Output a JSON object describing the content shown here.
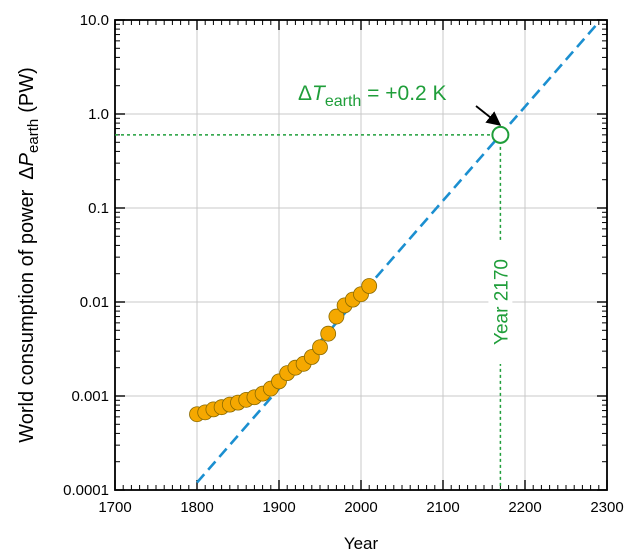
{
  "chart_data": {
    "type": "scatter",
    "xlabel": "Year",
    "ylabel_main": "World consumption of power",
    "ylabel_symbol_prefix": "Δ",
    "ylabel_symbol": "P",
    "ylabel_symbol_sub": "earth",
    "ylabel_unit": "(PW)",
    "xlim": [
      1700,
      2300
    ],
    "ylim": [
      0.0001,
      10
    ],
    "yscale": "log",
    "grid": true,
    "x_ticks": [
      "1700",
      "1800",
      "1900",
      "2000",
      "2100",
      "2200",
      "2300"
    ],
    "y_ticks": [
      "0.0001",
      "0.001",
      "0.01",
      "0.1",
      "1.0",
      "10.0"
    ],
    "series": [
      {
        "marker": "circle",
        "color": "#f5a800",
        "points": [
          {
            "x": 1800,
            "y": 0.00064
          },
          {
            "x": 1810,
            "y": 0.00067
          },
          {
            "x": 1820,
            "y": 0.00072
          },
          {
            "x": 1830,
            "y": 0.00076
          },
          {
            "x": 1840,
            "y": 0.00081
          },
          {
            "x": 1850,
            "y": 0.00085
          },
          {
            "x": 1860,
            "y": 0.00091
          },
          {
            "x": 1870,
            "y": 0.00097
          },
          {
            "x": 1880,
            "y": 0.00106
          },
          {
            "x": 1890,
            "y": 0.0012
          },
          {
            "x": 1900,
            "y": 0.00143
          },
          {
            "x": 1910,
            "y": 0.00175
          },
          {
            "x": 1920,
            "y": 0.002
          },
          {
            "x": 1930,
            "y": 0.0022
          },
          {
            "x": 1940,
            "y": 0.0026
          },
          {
            "x": 1950,
            "y": 0.0033
          },
          {
            "x": 1960,
            "y": 0.0046
          },
          {
            "x": 1970,
            "y": 0.007
          },
          {
            "x": 1980,
            "y": 0.0092
          },
          {
            "x": 1990,
            "y": 0.0106
          },
          {
            "x": 2000,
            "y": 0.0121
          },
          {
            "x": 2010,
            "y": 0.0148
          }
        ]
      }
    ],
    "trend_line": {
      "color": "#1b8fd0",
      "style": "dashed",
      "from": {
        "x": 1800,
        "y": 0.00012
      },
      "to": {
        "x": 2290,
        "y": 9.5
      }
    },
    "projection": {
      "x": 2170,
      "y": 0.6,
      "color": "#1f9e3a",
      "marker": "open-circle"
    },
    "annotations": {
      "delta_symbol": "Δ",
      "t_symbol": "T",
      "t_sub": "earth",
      "t_value": " = +0.2 K",
      "year_label": "Year 2170"
    }
  }
}
